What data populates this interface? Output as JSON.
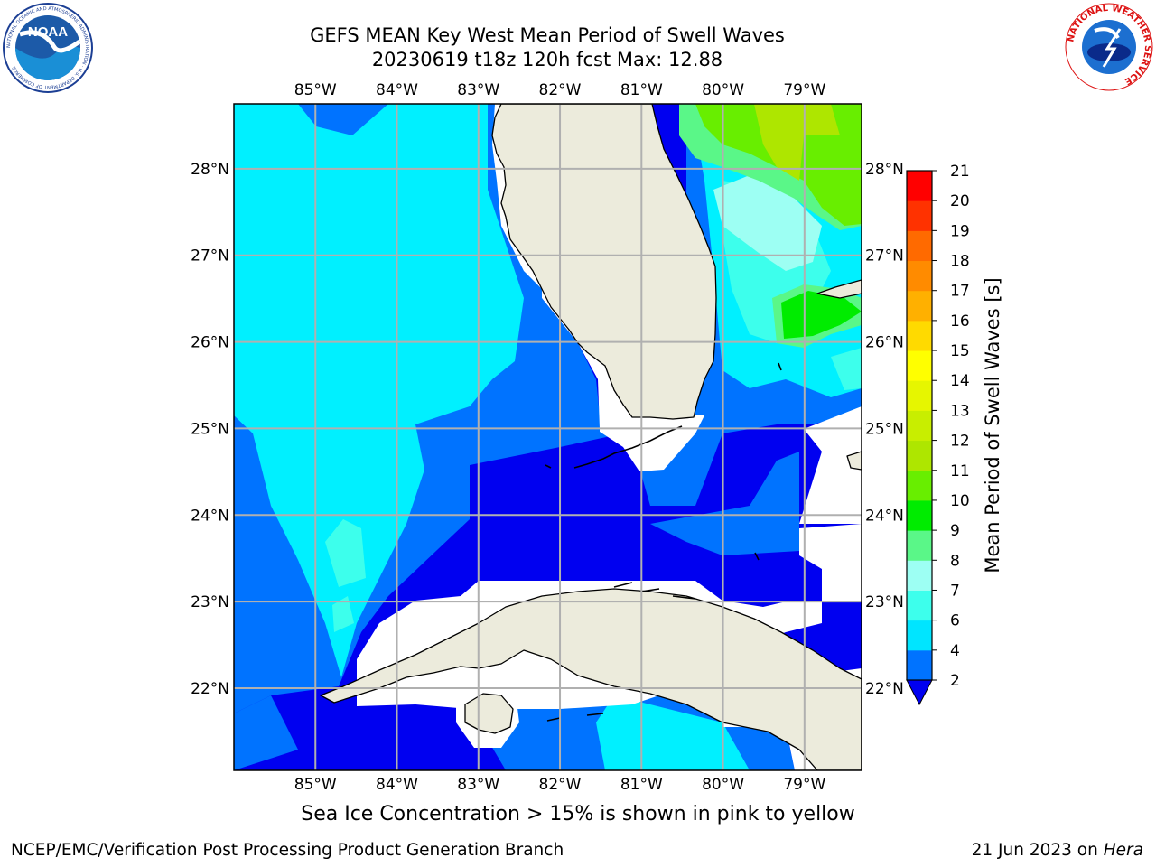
{
  "title": {
    "line1": "GEFS MEAN Key West Mean Period of Swell Waves",
    "line2": "20230619 t18z 120h fcst   Max: 12.88"
  },
  "logos": {
    "noaa": {
      "text": "NOAA",
      "ring_text": "NATIONAL OCEANIC AND ATMOSPHERIC ADMINISTRATION · U.S. DEPARTMENT OF COMMERCE",
      "icon": "noaa-logo"
    },
    "nws": {
      "ring_text": "NATIONAL WEATHER SERVICE",
      "icon": "nws-logo"
    }
  },
  "map": {
    "lon_labels": [
      "85°W",
      "84°W",
      "83°W",
      "82°W",
      "81°W",
      "80°W",
      "79°W"
    ],
    "lat_labels": [
      "28°N",
      "27°N",
      "26°N",
      "25°N",
      "24°N",
      "23°N",
      "22°N"
    ],
    "lon_values": [
      -85,
      -84,
      -83,
      -82,
      -81,
      -80,
      -79
    ],
    "lat_values": [
      28,
      27,
      26,
      25,
      24,
      23,
      22
    ],
    "extent": {
      "lon": [
        -86,
        -78.3
      ],
      "lat": [
        21.05,
        28.75
      ]
    },
    "colors": {
      "land": "#ecebdc",
      "coast": "#000000",
      "grid": "#b0b0b0",
      "nodata": "#ffffff"
    }
  },
  "colorbar": {
    "label": "Mean Period of Swell Waves [s]",
    "ticks": [
      "2",
      "4",
      "6",
      "7",
      "8",
      "9",
      "10",
      "11",
      "12",
      "13",
      "14",
      "15",
      "16",
      "17",
      "18",
      "19",
      "20",
      "21"
    ],
    "colors": [
      "#0073ff",
      "#00e5ff",
      "#3dffec",
      "#9dfff3",
      "#5af788",
      "#00ec00",
      "#68ee00",
      "#aee600",
      "#c8ee00",
      "#e6f600",
      "#ffff00",
      "#ffda00",
      "#ffb000",
      "#ff8b00",
      "#ff6a00",
      "#ff3200",
      "#ff0000"
    ],
    "under_color": "#0000f0"
  },
  "field_colors": {
    "le2": "#0000f0",
    "2_4": "#0073ff",
    "4_6": "#00f0ff",
    "6_7": "#3dffec",
    "7_8": "#9dfff3",
    "9_10": "#5af788",
    "10_11": "#00ec00",
    "11_12": "#68ee00",
    "12_13": "#aee600"
  },
  "footer": {
    "note": "Sea Ice Concentration > 15% is shown in pink to yellow",
    "credit_left": "NCEP/EMC/Verification Post Processing Product Generation Branch",
    "credit_right_prefix": "21 Jun 2023 on ",
    "credit_right_machine": "Hera"
  }
}
